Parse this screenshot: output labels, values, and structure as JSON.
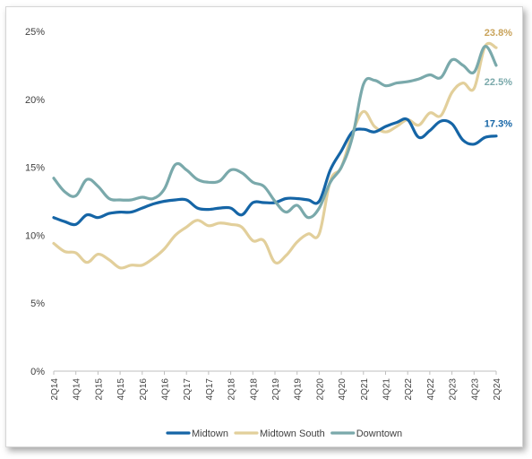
{
  "chart_data": {
    "type": "line",
    "title": "",
    "xlabel": "",
    "ylabel": "",
    "ylim": [
      0,
      25
    ],
    "y_ticks": [
      "0%",
      "5%",
      "10%",
      "15%",
      "20%",
      "25%"
    ],
    "x_tick_labels": [
      "2Q14",
      "4Q14",
      "2Q15",
      "4Q15",
      "2Q16",
      "4Q16",
      "2Q17",
      "4Q17",
      "2Q18",
      "4Q18",
      "2Q19",
      "4Q19",
      "2Q20",
      "4Q20",
      "2Q21",
      "4Q21",
      "2Q22",
      "4Q22",
      "2Q23",
      "4Q23",
      "2Q24"
    ],
    "x": [
      "2Q14",
      "3Q14",
      "4Q14",
      "1Q15",
      "2Q15",
      "3Q15",
      "4Q15",
      "1Q16",
      "2Q16",
      "3Q16",
      "4Q16",
      "1Q17",
      "2Q17",
      "3Q17",
      "4Q17",
      "1Q18",
      "2Q18",
      "3Q18",
      "4Q18",
      "1Q19",
      "2Q19",
      "3Q19",
      "4Q19",
      "1Q20",
      "2Q20",
      "3Q20",
      "4Q20",
      "1Q21",
      "2Q21",
      "3Q21",
      "4Q21",
      "1Q22",
      "2Q22",
      "3Q22",
      "4Q22",
      "1Q23",
      "2Q23",
      "3Q23",
      "4Q23",
      "1Q24",
      "2Q24"
    ],
    "grid": false,
    "legend": "bottom",
    "series": [
      {
        "name": "Midtown",
        "color": "#1565a6",
        "end_label": "17.3%",
        "values": [
          11.3,
          11.0,
          10.8,
          11.5,
          11.3,
          11.6,
          11.7,
          11.7,
          12.0,
          12.3,
          12.5,
          12.6,
          12.6,
          12.0,
          11.9,
          12.0,
          12.0,
          11.5,
          12.4,
          12.4,
          12.4,
          12.7,
          12.7,
          12.6,
          12.5,
          14.8,
          16.2,
          17.6,
          17.8,
          17.6,
          18.0,
          18.3,
          18.5,
          17.2,
          17.7,
          18.4,
          18.2,
          17.0,
          16.7,
          17.2,
          17.3
        ]
      },
      {
        "name": "Midtown South",
        "color": "#e2cf9b",
        "end_label": "23.8%",
        "values": [
          9.4,
          8.8,
          8.7,
          8.0,
          8.6,
          8.2,
          7.6,
          7.8,
          7.8,
          8.3,
          9.0,
          10.0,
          10.6,
          11.1,
          10.7,
          10.9,
          10.8,
          10.6,
          9.6,
          9.6,
          8.0,
          8.5,
          9.5,
          10.1,
          10.1,
          14.0,
          15.0,
          17.5,
          19.1,
          18.0,
          17.6,
          18.0,
          18.5,
          18.1,
          19.0,
          18.8,
          20.5,
          21.2,
          20.8,
          23.9,
          23.8
        ]
      },
      {
        "name": "Downtown",
        "color": "#7aa9ab",
        "end_label": "22.5%",
        "values": [
          14.2,
          13.2,
          12.9,
          14.1,
          13.6,
          12.7,
          12.6,
          12.6,
          12.8,
          12.7,
          13.4,
          15.2,
          14.8,
          14.1,
          13.9,
          14.0,
          14.8,
          14.6,
          13.9,
          13.6,
          12.5,
          11.7,
          12.2,
          11.3,
          12.0,
          13.9,
          15.0,
          17.2,
          21.1,
          21.4,
          21.0,
          21.2,
          21.3,
          21.5,
          21.8,
          21.6,
          22.9,
          22.5,
          22.0,
          23.9,
          22.5
        ]
      }
    ]
  }
}
